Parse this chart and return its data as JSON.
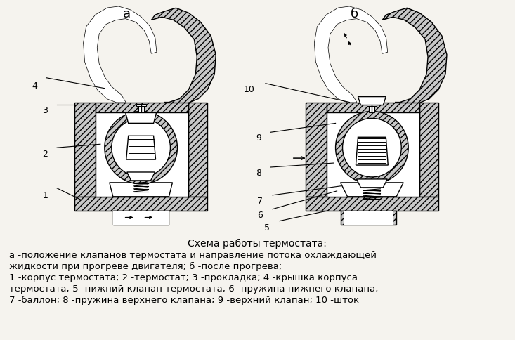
{
  "title_center": "Схема работы термостата:",
  "line1": "а -положение клапанов термостата и направление потока охлаждающей",
  "line2": "жидкости при прогреве двигателя; б -после прогрева;",
  "line3": "1 -корпус термостата; 2 -термостат; 3 -прокладка; 4 -крышка корпуса",
  "line4": "термостата; 5 -нижний клапан термостата; 6 -пружина нижнего клапана;",
  "line5": "7 -баллон; 8 -пружина верхнего клапана; 9 -верхний клапан; 10 -шток",
  "label_a": "а",
  "label_b": "б",
  "bg_color": "#f5f3ee",
  "hatch_color": "#c8c8c8",
  "text_color": "#000000",
  "fig_width": 7.33,
  "fig_height": 4.84,
  "dpi": 100
}
